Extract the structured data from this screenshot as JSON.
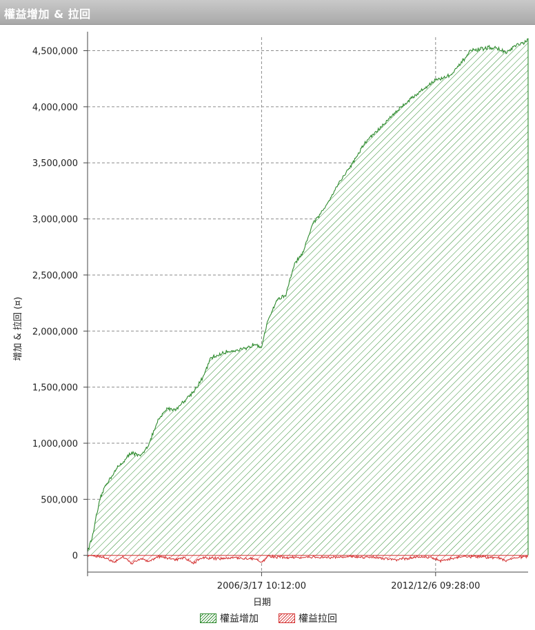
{
  "window": {
    "title": "權益增加 & 拉回"
  },
  "chart_data": {
    "type": "area",
    "title": "權益增加 & 拉回",
    "xlabel": "日期",
    "ylabel": "增加 & 拉回 (¤)",
    "ylim": [
      -100000,
      4620000
    ],
    "yticks": [
      {
        "value": 0,
        "label": "0"
      },
      {
        "value": 500000,
        "label": "500,000"
      },
      {
        "value": 1000000,
        "label": "1,000,000"
      },
      {
        "value": 1500000,
        "label": "1,500,000"
      },
      {
        "value": 2000000,
        "label": "2,000,000"
      },
      {
        "value": 2500000,
        "label": "2,500,000"
      },
      {
        "value": 3000000,
        "label": "3,000,000"
      },
      {
        "value": 3500000,
        "label": "3,500,000"
      },
      {
        "value": 4000000,
        "label": "4,000,000"
      },
      {
        "value": 4500000,
        "label": "4,500,000"
      }
    ],
    "xticks": [
      {
        "label": "2006/3/17 10:12:00",
        "frac": 0.395
      },
      {
        "label": "2012/12/6 09:28:00",
        "frac": 0.79
      }
    ],
    "grid": true,
    "legend_position": "bottom",
    "colors": {
      "equity": "#2e8b2e",
      "drawdown": "#d43030"
    },
    "series": [
      {
        "name": "權益增加",
        "x": [
          0,
          0.01,
          0.02,
          0.03,
          0.04,
          0.05,
          0.06,
          0.07,
          0.08,
          0.1,
          0.12,
          0.14,
          0.16,
          0.18,
          0.2,
          0.22,
          0.24,
          0.26,
          0.28,
          0.3,
          0.32,
          0.34,
          0.36,
          0.38,
          0.395,
          0.41,
          0.43,
          0.45,
          0.47,
          0.49,
          0.51,
          0.53,
          0.55,
          0.57,
          0.59,
          0.61,
          0.63,
          0.65,
          0.67,
          0.69,
          0.71,
          0.73,
          0.75,
          0.77,
          0.79,
          0.81,
          0.83,
          0.85,
          0.87,
          0.89,
          0.91,
          0.93,
          0.95,
          0.97,
          0.99,
          1.0
        ],
        "y": [
          40000,
          150000,
          350000,
          520000,
          620000,
          680000,
          740000,
          790000,
          830000,
          920000,
          880000,
          1000000,
          1200000,
          1310000,
          1300000,
          1380000,
          1460000,
          1570000,
          1760000,
          1790000,
          1820000,
          1830000,
          1840000,
          1890000,
          1860000,
          2100000,
          2280000,
          2320000,
          2600000,
          2700000,
          2950000,
          3050000,
          3180000,
          3320000,
          3430000,
          3550000,
          3680000,
          3760000,
          3830000,
          3920000,
          3990000,
          4060000,
          4120000,
          4180000,
          4240000,
          4260000,
          4300000,
          4400000,
          4500000,
          4510000,
          4530000,
          4520000,
          4480000,
          4540000,
          4570000,
          4590000
        ]
      },
      {
        "name": "權益拉回",
        "x": [
          0,
          0.04,
          0.06,
          0.08,
          0.1,
          0.12,
          0.14,
          0.16,
          0.2,
          0.22,
          0.24,
          0.26,
          0.3,
          0.34,
          0.38,
          0.395,
          0.41,
          0.45,
          0.5,
          0.55,
          0.6,
          0.65,
          0.7,
          0.75,
          0.78,
          0.8,
          0.85,
          0.9,
          0.93,
          0.95,
          0.97,
          1.0
        ],
        "y": [
          0,
          -20000,
          -60000,
          -10000,
          -70000,
          -30000,
          -50000,
          -10000,
          -40000,
          -20000,
          -70000,
          -20000,
          -30000,
          -20000,
          -30000,
          -60000,
          -10000,
          -20000,
          -15000,
          -20000,
          -10000,
          -20000,
          -40000,
          -15000,
          -20000,
          -50000,
          -10000,
          -15000,
          -20000,
          -50000,
          -20000,
          -10000
        ]
      }
    ]
  }
}
